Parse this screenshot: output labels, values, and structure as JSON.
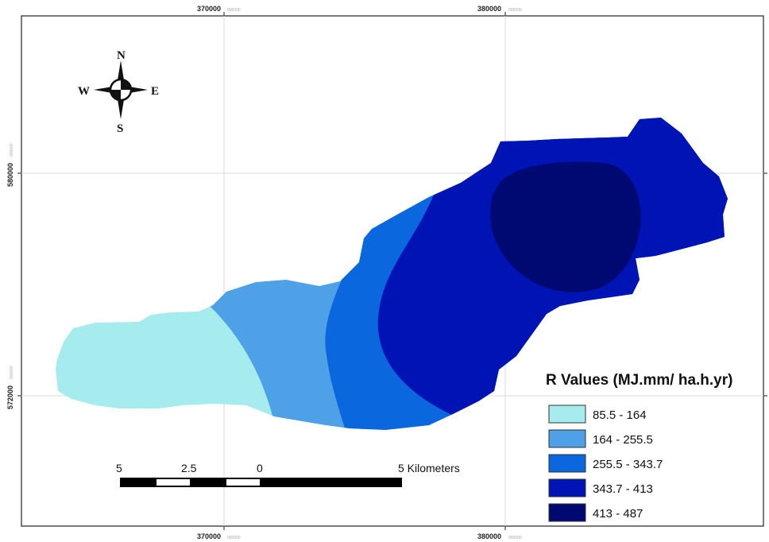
{
  "map": {
    "grid_x_ticks": [
      {
        "main": "370000",
        "sub": "000000"
      },
      {
        "main": "380000",
        "sub": "000000"
      }
    ],
    "grid_y_ticks": [
      {
        "main": "580000",
        "sub": "000000"
      },
      {
        "main": "572000",
        "sub": "000000"
      }
    ],
    "zones": [
      {
        "range": "85.5 - 164",
        "color": "#a6ecef"
      },
      {
        "range": "164 - 255.5",
        "color": "#4ea1e6"
      },
      {
        "range": "255.5 - 343.7",
        "color": "#0a67de"
      },
      {
        "range": "343.7 - 413",
        "color": "#0014b6"
      },
      {
        "range": "413 - 487",
        "color": "#000871"
      }
    ]
  },
  "legend": {
    "title": "R Values (MJ.mm/ ha.h.yr)"
  },
  "compass": {
    "north": "N",
    "south": "S",
    "east": "E",
    "west": "W"
  },
  "scale_bar": {
    "labels": [
      "5",
      "2.5",
      "0",
      "5 Kilometers"
    ]
  }
}
